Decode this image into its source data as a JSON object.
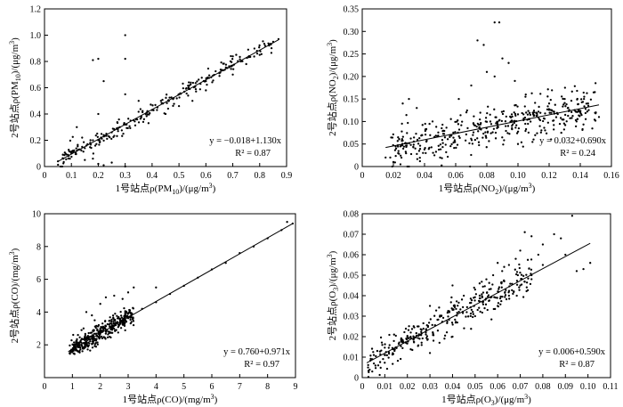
{
  "chart_data": [
    {
      "type": "scatter",
      "xlabel": "1号站点ρ(PM10)/(μg/m3)",
      "ylabel": "2号站点ρ(PM10)/(μg/m3)",
      "xlim": [
        0,
        0.9
      ],
      "ylim": [
        0,
        1.2
      ],
      "xticks": [
        "0",
        "0.1",
        "0.2",
        "0.3",
        "0.4",
        "0.5",
        "0.6",
        "0.7",
        "0.8",
        "0.9"
      ],
      "yticks": [
        "0",
        "0.2",
        "0.4",
        "0.6",
        "0.8",
        "1.0",
        "1.2"
      ],
      "equation": "y = −0.018+1.130x",
      "r2": "R² = 0.87",
      "fit": {
        "intercept": -0.018,
        "slope": 1.13,
        "x_range": [
          0.05,
          0.87
        ]
      },
      "points": [
        [
          0.05,
          0.04
        ],
        [
          0.07,
          0.06
        ],
        [
          0.09,
          0.08
        ],
        [
          0.1,
          0.1
        ],
        [
          0.12,
          0.12
        ],
        [
          0.13,
          0.13
        ],
        [
          0.14,
          0.15
        ],
        [
          0.15,
          0.14
        ],
        [
          0.16,
          0.17
        ],
        [
          0.17,
          0.18
        ],
        [
          0.18,
          0.2
        ],
        [
          0.2,
          0.2
        ],
        [
          0.21,
          0.22
        ],
        [
          0.22,
          0.24
        ],
        [
          0.23,
          0.25
        ],
        [
          0.25,
          0.26
        ],
        [
          0.26,
          0.28
        ],
        [
          0.28,
          0.3
        ],
        [
          0.3,
          0.32
        ],
        [
          0.32,
          0.35
        ],
        [
          0.34,
          0.36
        ],
        [
          0.36,
          0.38
        ],
        [
          0.38,
          0.41
        ],
        [
          0.4,
          0.43
        ],
        [
          0.42,
          0.45
        ],
        [
          0.44,
          0.48
        ],
        [
          0.46,
          0.5
        ],
        [
          0.48,
          0.52
        ],
        [
          0.5,
          0.55
        ],
        [
          0.52,
          0.57
        ],
        [
          0.54,
          0.59
        ],
        [
          0.56,
          0.61
        ],
        [
          0.58,
          0.63
        ],
        [
          0.6,
          0.65
        ],
        [
          0.62,
          0.68
        ],
        [
          0.65,
          0.71
        ],
        [
          0.68,
          0.75
        ],
        [
          0.7,
          0.77
        ],
        [
          0.73,
          0.8
        ],
        [
          0.76,
          0.84
        ],
        [
          0.79,
          0.88
        ],
        [
          0.82,
          0.92
        ],
        [
          0.85,
          0.95
        ],
        [
          0.87,
          0.97
        ],
        [
          0.18,
          0.81
        ],
        [
          0.2,
          0.82
        ],
        [
          0.3,
          1.0
        ],
        [
          0.3,
          0.82
        ],
        [
          0.22,
          0.65
        ],
        [
          0.15,
          0.05
        ],
        [
          0.2,
          0.02
        ],
        [
          0.22,
          0.01
        ],
        [
          0.25,
          0.03
        ],
        [
          0.3,
          0.0
        ],
        [
          0.18,
          0.06
        ],
        [
          0.12,
          0.3
        ],
        [
          0.14,
          0.22
        ],
        [
          0.2,
          0.4
        ],
        [
          0.3,
          0.55
        ],
        [
          0.35,
          0.5
        ],
        [
          0.45,
          0.4
        ],
        [
          0.5,
          0.46
        ],
        [
          0.55,
          0.5
        ],
        [
          0.6,
          0.58
        ],
        [
          0.7,
          0.7
        ],
        [
          0.75,
          0.78
        ],
        [
          0.8,
          0.85
        ]
      ],
      "scatter_params": {
        "n": 220,
        "x_range": [
          0.05,
          0.85
        ],
        "spread": 0.035,
        "seed": 11
      }
    },
    {
      "type": "scatter",
      "xlabel": "1号站点ρ(NO2)/(μg/m3)",
      "ylabel": "2号站点ρ(NO2)/(μg/m3)",
      "xlim": [
        0,
        0.16
      ],
      "ylim": [
        0,
        0.35
      ],
      "xticks": [
        "0",
        "0.02",
        "0.04",
        "0.06",
        "0.08",
        "0.10",
        "0.12",
        "0.14",
        "0.16"
      ],
      "yticks": [
        "0",
        "0.05",
        "0.10",
        "0.15",
        "0.20",
        "0.25",
        "0.30",
        "0.35"
      ],
      "equation": "y = 0.032+0.690x",
      "r2": "R² = 0.24",
      "fit": {
        "intercept": 0.032,
        "slope": 0.69,
        "x_range": [
          0.015,
          0.152
        ]
      },
      "points": [
        [
          0.085,
          0.32
        ],
        [
          0.088,
          0.32
        ],
        [
          0.074,
          0.28
        ],
        [
          0.078,
          0.27
        ],
        [
          0.09,
          0.24
        ],
        [
          0.094,
          0.23
        ],
        [
          0.08,
          0.21
        ],
        [
          0.085,
          0.2
        ],
        [
          0.07,
          0.18
        ],
        [
          0.098,
          0.19
        ],
        [
          0.062,
          0.15
        ],
        [
          0.105,
          0.16
        ],
        [
          0.03,
          0.15
        ],
        [
          0.026,
          0.14
        ],
        [
          0.035,
          0.13
        ],
        [
          0.12,
          0.14
        ],
        [
          0.13,
          0.15
        ],
        [
          0.145,
          0.14
        ],
        [
          0.15,
          0.12
        ],
        [
          0.018,
          0.02
        ],
        [
          0.02,
          0.01
        ],
        [
          0.015,
          0.02
        ],
        [
          0.03,
          0.0
        ],
        [
          0.05,
          0.02
        ],
        [
          0.1,
          0.05
        ],
        [
          0.11,
          0.06
        ],
        [
          0.14,
          0.12
        ],
        [
          0.152,
          0.11
        ]
      ],
      "scatter_params": {
        "n": 420,
        "x_range": [
          0.018,
          0.15
        ],
        "spread": 0.022,
        "seed": 23
      }
    },
    {
      "type": "scatter",
      "xlabel": "1号站点ρ(CO)/(mg/m3)",
      "ylabel": "2号站点ρ(CO)/(mg/m3)",
      "xlim": [
        0,
        9
      ],
      "ylim": [
        0,
        10
      ],
      "xticks": [
        "0",
        "1",
        "2",
        "3",
        "4",
        "5",
        "6",
        "7",
        "8",
        "9"
      ],
      "yticks": [
        "",
        "2",
        "4",
        "6",
        "8",
        "10"
      ],
      "equation": "y = 0.760+0.971x",
      "r2": "R² = 0.97",
      "fit": {
        "intercept": 0.76,
        "slope": 0.971,
        "x_range": [
          0.85,
          8.9
        ]
      },
      "points": [
        [
          0.9,
          1.5
        ],
        [
          1.0,
          1.6
        ],
        [
          1.2,
          1.9
        ],
        [
          1.5,
          2.2
        ],
        [
          2.0,
          2.7
        ],
        [
          2.5,
          3.2
        ],
        [
          3.0,
          3.7
        ],
        [
          3.5,
          4.2
        ],
        [
          4.0,
          4.6
        ],
        [
          4.5,
          5.1
        ],
        [
          5.0,
          5.6
        ],
        [
          5.5,
          6.1
        ],
        [
          6.0,
          6.6
        ],
        [
          6.5,
          7.0
        ],
        [
          7.0,
          7.6
        ],
        [
          7.5,
          8.0
        ],
        [
          8.0,
          8.5
        ],
        [
          8.5,
          9.0
        ],
        [
          8.7,
          9.5
        ],
        [
          8.9,
          9.4
        ],
        [
          1.5,
          4.0
        ],
        [
          1.7,
          3.8
        ],
        [
          2.0,
          4.5
        ],
        [
          2.2,
          4.9
        ],
        [
          2.5,
          5.0
        ],
        [
          3.0,
          5.2
        ],
        [
          3.2,
          5.5
        ],
        [
          2.8,
          4.8
        ],
        [
          1.8,
          3.5
        ],
        [
          4.0,
          5.5
        ],
        [
          1.2,
          2.6
        ],
        [
          1.4,
          3.0
        ]
      ],
      "scatter_params": {
        "n": 360,
        "x_range": [
          0.9,
          3.2
        ],
        "spread": 0.28,
        "seed": 37
      }
    },
    {
      "type": "scatter",
      "xlabel": "1号站点ρ(O3)/(μg/m3)",
      "ylabel": "2号站点ρ(O3)/(μg/m3)",
      "xlim": [
        0,
        0.11
      ],
      "ylim": [
        0,
        0.08
      ],
      "xticks": [
        "0",
        "0.01",
        "0.02",
        "0.03",
        "0.04",
        "0.05",
        "0.06",
        "0.07",
        "0.08",
        "0.09",
        "0.10",
        "0.11"
      ],
      "yticks": [
        "0",
        "0.01",
        "0.02",
        "0.03",
        "0.04",
        "0.05",
        "0.06",
        "0.07",
        "0.08"
      ],
      "equation": "y = 0.006+0.590x",
      "r2": "R² = 0.87",
      "fit": {
        "intercept": 0.006,
        "slope": 0.59,
        "x_range": [
          0.002,
          0.101
        ]
      },
      "points": [
        [
          0.093,
          0.079
        ],
        [
          0.085,
          0.07
        ],
        [
          0.088,
          0.068
        ],
        [
          0.08,
          0.065
        ],
        [
          0.072,
          0.071
        ],
        [
          0.075,
          0.069
        ],
        [
          0.078,
          0.06
        ],
        [
          0.07,
          0.062
        ],
        [
          0.068,
          0.058
        ],
        [
          0.065,
          0.055
        ],
        [
          0.062,
          0.052
        ],
        [
          0.06,
          0.056
        ],
        [
          0.058,
          0.05
        ],
        [
          0.055,
          0.048
        ],
        [
          0.052,
          0.046
        ],
        [
          0.05,
          0.043
        ],
        [
          0.095,
          0.052
        ],
        [
          0.098,
          0.053
        ],
        [
          0.101,
          0.056
        ],
        [
          0.09,
          0.06
        ],
        [
          0.04,
          0.045
        ],
        [
          0.045,
          0.04
        ],
        [
          0.03,
          0.035
        ],
        [
          0.035,
          0.03
        ],
        [
          0.025,
          0.025
        ],
        [
          0.02,
          0.02
        ],
        [
          0.03,
          0.012
        ],
        [
          0.04,
          0.02
        ],
        [
          0.05,
          0.03
        ],
        [
          0.06,
          0.035
        ],
        [
          0.065,
          0.04
        ],
        [
          0.07,
          0.045
        ],
        [
          0.075,
          0.05
        ],
        [
          0.08,
          0.055
        ]
      ],
      "scatter_params": {
        "n": 330,
        "x_range": [
          0.002,
          0.075
        ],
        "spread": 0.004,
        "seed": 53
      }
    }
  ]
}
